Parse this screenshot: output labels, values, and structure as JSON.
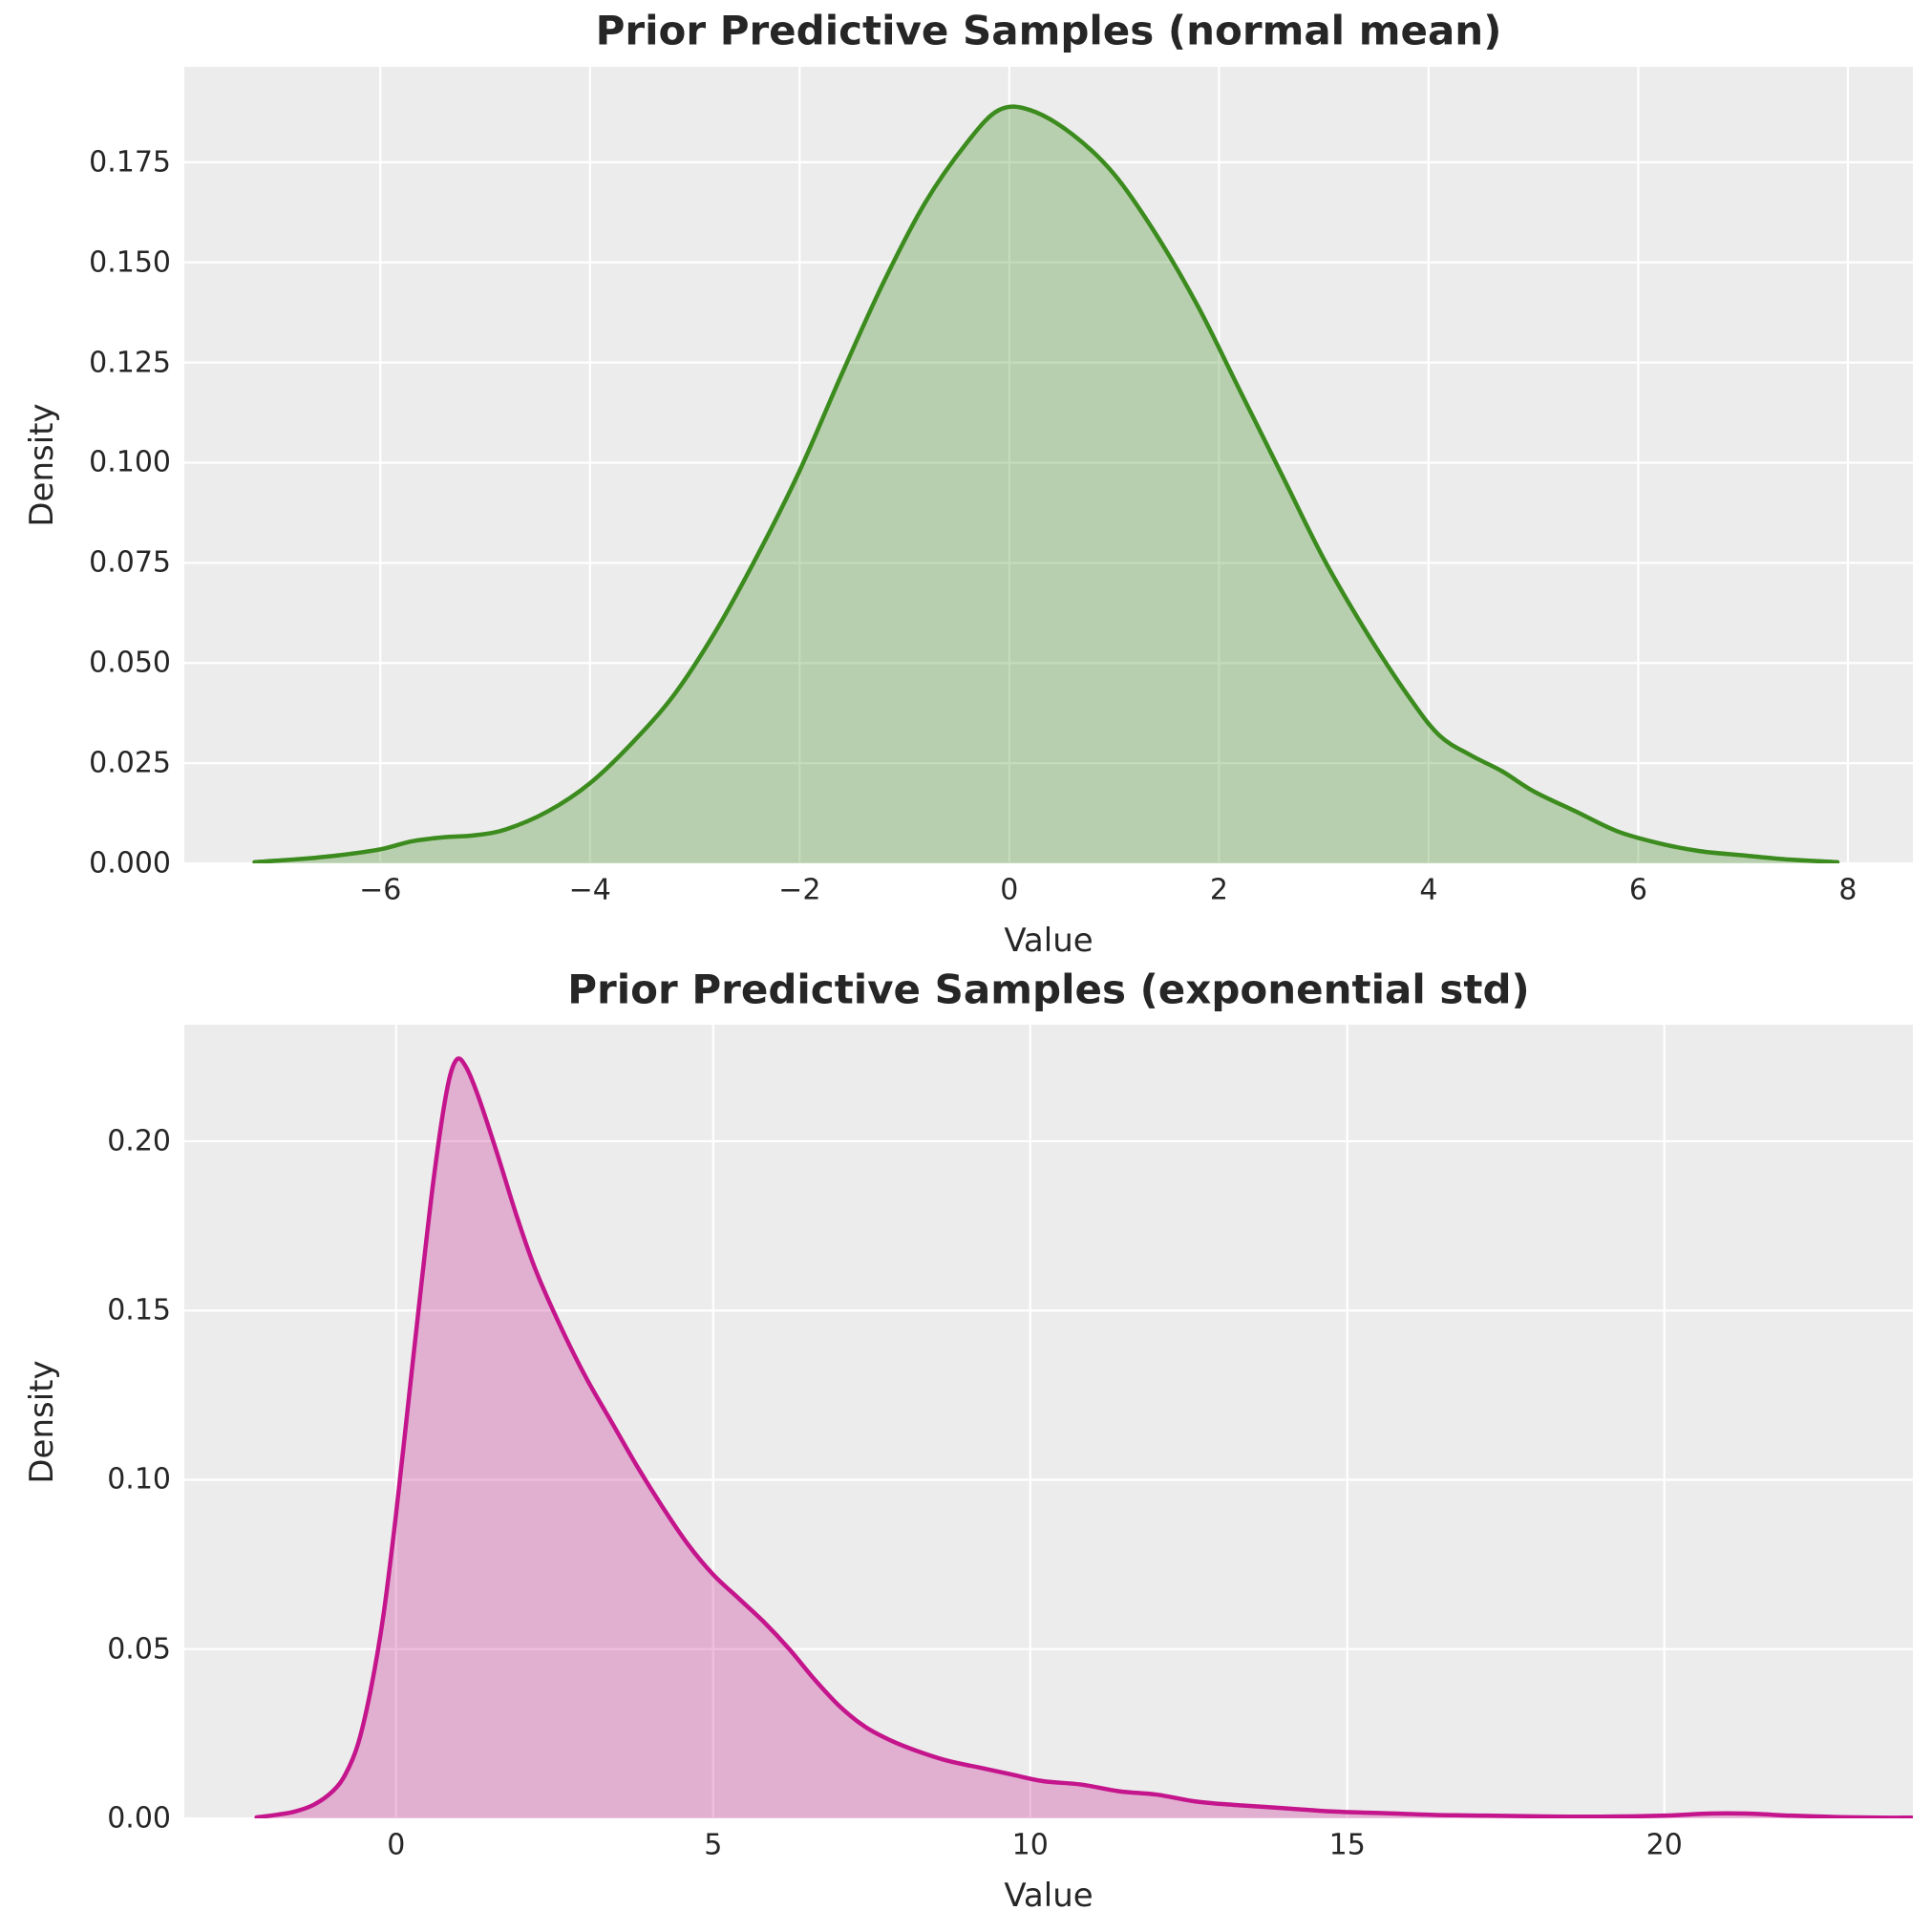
{
  "figure": {
    "background": "#ffffff",
    "panel_background": "#ececec",
    "grid_color": "#ffffff",
    "text_color": "#262626"
  },
  "chart_data": [
    {
      "type": "area",
      "title": "Prior Predictive Samples (normal mean)",
      "xlabel": "Value",
      "ylabel": "Density",
      "legend": "none",
      "grid": true,
      "line_color": "#3c8b1e",
      "fill_color": "rgba(60,139,30,0.30)",
      "xlim": [
        -7.87,
        8.62
      ],
      "ylim": [
        0,
        0.1988
      ],
      "x_ticks": [
        -6,
        -4,
        -2,
        0,
        2,
        4,
        6,
        8
      ],
      "x_tick_labels": [
        "−6",
        "−4",
        "−2",
        "0",
        "2",
        "4",
        "6",
        "8"
      ],
      "y_ticks": [
        0.0,
        0.025,
        0.05,
        0.075,
        0.1,
        0.125,
        0.15,
        0.175
      ],
      "y_tick_labels": [
        "0.000",
        "0.025",
        "0.050",
        "0.075",
        "0.100",
        "0.125",
        "0.150",
        "0.175"
      ],
      "points": [
        [
          -7.2,
          0.0003
        ],
        [
          -6.8,
          0.001
        ],
        [
          -6.4,
          0.002
        ],
        [
          -6.0,
          0.0035
        ],
        [
          -5.7,
          0.0055
        ],
        [
          -5.4,
          0.0065
        ],
        [
          -5.1,
          0.007
        ],
        [
          -4.8,
          0.0085
        ],
        [
          -4.4,
          0.013
        ],
        [
          -4.0,
          0.02
        ],
        [
          -3.6,
          0.03
        ],
        [
          -3.2,
          0.042
        ],
        [
          -2.8,
          0.058
        ],
        [
          -2.4,
          0.077
        ],
        [
          -2.0,
          0.098
        ],
        [
          -1.6,
          0.122
        ],
        [
          -1.2,
          0.145
        ],
        [
          -0.8,
          0.165
        ],
        [
          -0.4,
          0.18
        ],
        [
          -0.1,
          0.188
        ],
        [
          0.2,
          0.188
        ],
        [
          0.6,
          0.182
        ],
        [
          1.0,
          0.172
        ],
        [
          1.4,
          0.157
        ],
        [
          1.8,
          0.139
        ],
        [
          2.2,
          0.118
        ],
        [
          2.6,
          0.097
        ],
        [
          3.0,
          0.076
        ],
        [
          3.4,
          0.058
        ],
        [
          3.8,
          0.042
        ],
        [
          4.1,
          0.032
        ],
        [
          4.4,
          0.027
        ],
        [
          4.7,
          0.023
        ],
        [
          5.0,
          0.018
        ],
        [
          5.4,
          0.013
        ],
        [
          5.8,
          0.008
        ],
        [
          6.2,
          0.005
        ],
        [
          6.6,
          0.003
        ],
        [
          7.0,
          0.002
        ],
        [
          7.4,
          0.001
        ],
        [
          7.9,
          0.0003
        ]
      ]
    },
    {
      "type": "area",
      "title": "Prior Predictive Samples (exponential std)",
      "xlabel": "Value",
      "ylabel": "Density",
      "legend": "none",
      "grid": true,
      "line_color": "#c4158c",
      "fill_color": "rgba(196,21,140,0.28)",
      "xlim": [
        -3.34,
        23.92
      ],
      "ylim": [
        0,
        0.2344
      ],
      "x_ticks": [
        0,
        5,
        10,
        15,
        20
      ],
      "x_tick_labels": [
        "0",
        "5",
        "10",
        "15",
        "20"
      ],
      "y_ticks": [
        0.0,
        0.05,
        0.1,
        0.15,
        0.2
      ],
      "y_tick_labels": [
        "0.00",
        "0.05",
        "0.10",
        "0.15",
        "0.20"
      ],
      "points": [
        [
          -2.2,
          0.0003
        ],
        [
          -1.9,
          0.001
        ],
        [
          -1.6,
          0.002
        ],
        [
          -1.3,
          0.004
        ],
        [
          -1.0,
          0.008
        ],
        [
          -0.8,
          0.013
        ],
        [
          -0.6,
          0.022
        ],
        [
          -0.4,
          0.038
        ],
        [
          -0.2,
          0.06
        ],
        [
          0.0,
          0.09
        ],
        [
          0.2,
          0.124
        ],
        [
          0.4,
          0.158
        ],
        [
          0.6,
          0.19
        ],
        [
          0.8,
          0.215
        ],
        [
          0.95,
          0.224
        ],
        [
          1.1,
          0.222
        ],
        [
          1.3,
          0.213
        ],
        [
          1.6,
          0.196
        ],
        [
          1.9,
          0.178
        ],
        [
          2.2,
          0.162
        ],
        [
          2.6,
          0.145
        ],
        [
          3.0,
          0.13
        ],
        [
          3.4,
          0.117
        ],
        [
          3.8,
          0.104
        ],
        [
          4.2,
          0.092
        ],
        [
          4.6,
          0.081
        ],
        [
          5.0,
          0.072
        ],
        [
          5.4,
          0.065
        ],
        [
          5.8,
          0.058
        ],
        [
          6.2,
          0.05
        ],
        [
          6.6,
          0.041
        ],
        [
          7.0,
          0.033
        ],
        [
          7.4,
          0.027
        ],
        [
          7.8,
          0.023
        ],
        [
          8.2,
          0.02
        ],
        [
          8.7,
          0.017
        ],
        [
          9.2,
          0.015
        ],
        [
          9.7,
          0.013
        ],
        [
          10.2,
          0.011
        ],
        [
          10.8,
          0.01
        ],
        [
          11.4,
          0.008
        ],
        [
          12.0,
          0.007
        ],
        [
          12.6,
          0.005
        ],
        [
          13.2,
          0.004
        ],
        [
          14.0,
          0.003
        ],
        [
          14.8,
          0.002
        ],
        [
          15.6,
          0.0015
        ],
        [
          16.4,
          0.001
        ],
        [
          17.2,
          0.0008
        ],
        [
          18.0,
          0.0006
        ],
        [
          19.0,
          0.0005
        ],
        [
          20.0,
          0.0008
        ],
        [
          20.7,
          0.0014
        ],
        [
          21.3,
          0.0014
        ],
        [
          22.0,
          0.0008
        ],
        [
          22.7,
          0.0004
        ],
        [
          23.4,
          0.0002
        ],
        [
          23.9,
          0.0002
        ]
      ]
    }
  ]
}
